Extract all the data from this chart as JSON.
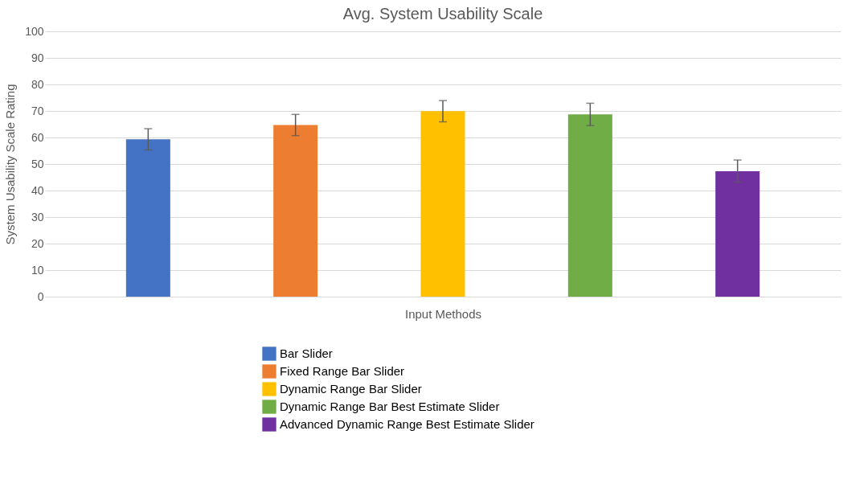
{
  "chart_data": {
    "type": "bar",
    "title": "Avg. System Usability Scale",
    "xlabel": "Input Methods",
    "ylabel": "System Usability Scale Rating",
    "categories": [
      null
    ],
    "series": [
      {
        "name": "Bar Slider",
        "color": "#4472c4",
        "values": [
          59.3
        ],
        "errors": [
          4
        ]
      },
      {
        "name": "Fixed Range Bar Slider",
        "color": "#ed7d31",
        "values": [
          64.7
        ],
        "errors": [
          4
        ]
      },
      {
        "name": "Dynamic Range Bar Slider",
        "color": "#ffc000",
        "values": [
          69.9
        ],
        "errors": [
          4
        ]
      },
      {
        "name": "Dynamic Range Bar Best Estimate Slider",
        "color": "#70ad47",
        "values": [
          68.7
        ],
        "errors": [
          4.2
        ]
      },
      {
        "name": "Advanced Dynamic Range Best Estimate Slider",
        "color": "#7030a0",
        "values": [
          47.3
        ],
        "errors": [
          4.2
        ]
      }
    ],
    "ylim": [
      0,
      100
    ],
    "yticks": [
      0,
      10,
      20,
      30,
      40,
      50,
      60,
      70,
      80,
      90,
      100
    ],
    "grid": "y",
    "legend": "bottom"
  }
}
